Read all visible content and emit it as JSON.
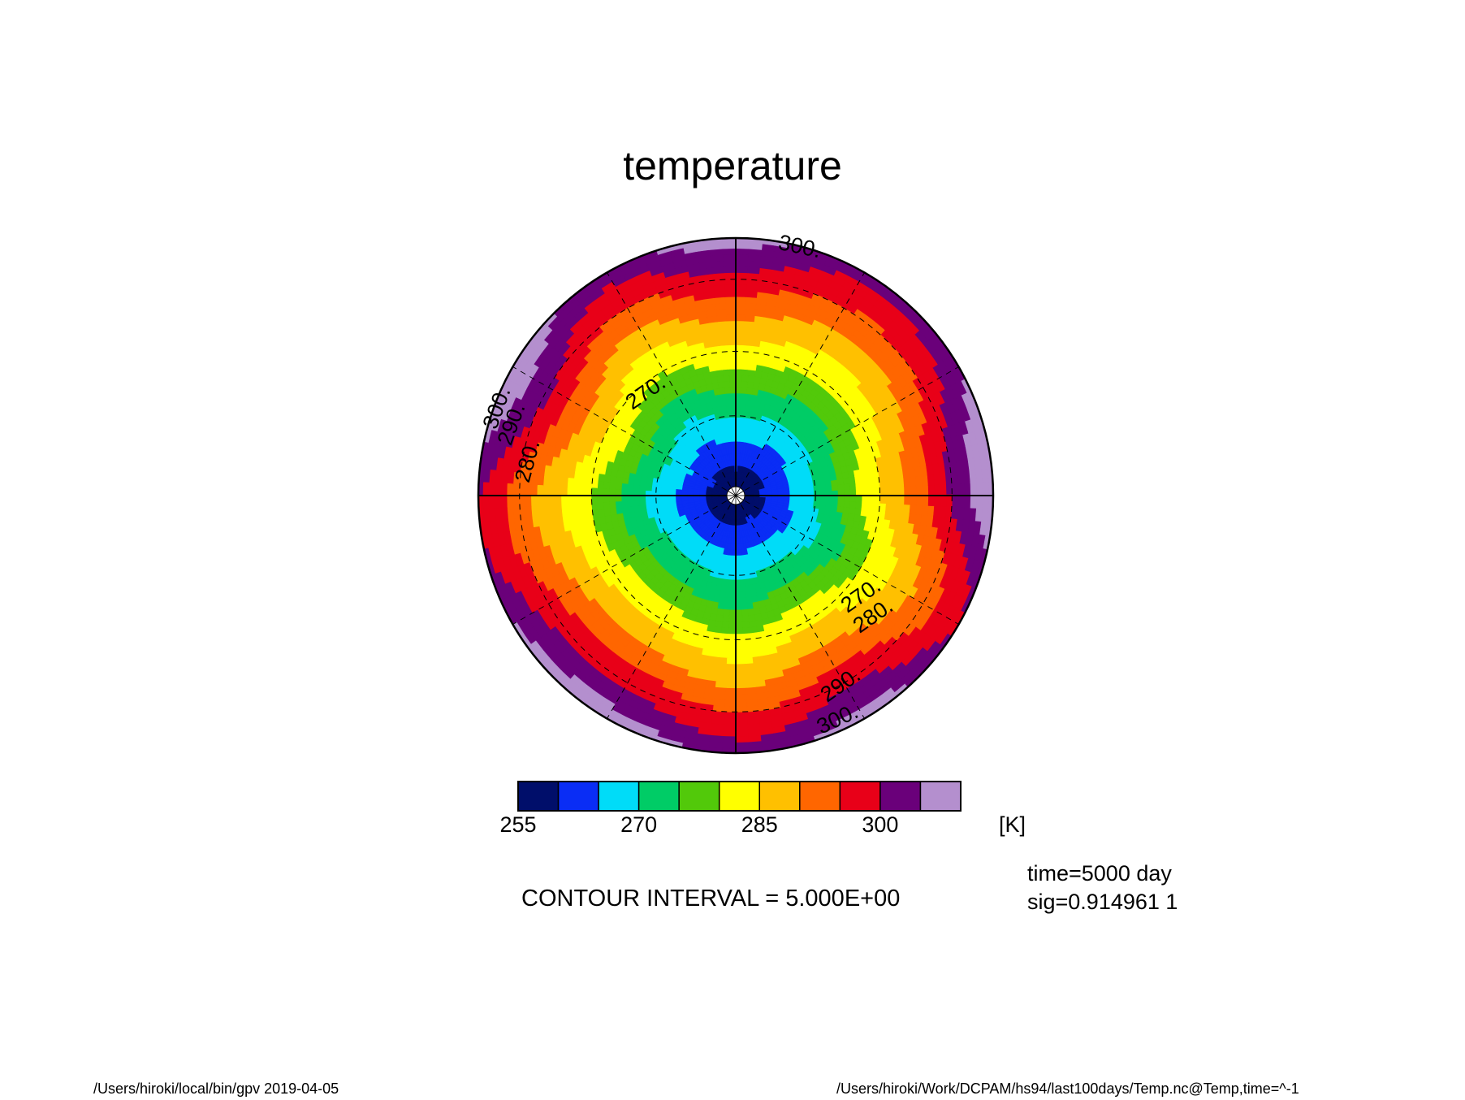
{
  "chart_data": {
    "type": "heatmap",
    "projection": "polar stereographic",
    "title": "temperature",
    "units": "[K]",
    "colorbar": {
      "levels": [
        255,
        260,
        265,
        270,
        275,
        280,
        285,
        290,
        295,
        300,
        305,
        310
      ],
      "tick_labels": [
        "255",
        "270",
        "285",
        "300"
      ],
      "tick_values": [
        255,
        270,
        285,
        300
      ],
      "colors": [
        "#000e6a",
        "#0a2df5",
        "#00dcf8",
        "#00cc66",
        "#52c90a",
        "#ffff00",
        "#ffc000",
        "#ff6600",
        "#e80018",
        "#6a007a",
        "#b48fce"
      ]
    },
    "contour_interval": "CONTOUR INTERVAL = 5.000E+00",
    "contour_labels": [
      "300.",
      "300.",
      "290.",
      "280.",
      "270.",
      "270.",
      "280.",
      "290.",
      "300."
    ],
    "contour_label_values": [
      300,
      300,
      290,
      280,
      270,
      270,
      280,
      290,
      300
    ],
    "pole_min_value": 255,
    "edge_max_value": 305,
    "grid": true
  },
  "annotations": {
    "time": "time=5000 day",
    "sig": "sig=0.914961 1"
  },
  "footer": {
    "left": "/Users/hiroki/local/bin/gpv  2019-04-05",
    "right": "/Users/hiroki/Work/DCPAM/hs94/last100days/Temp.nc@Temp,time=^-1"
  }
}
